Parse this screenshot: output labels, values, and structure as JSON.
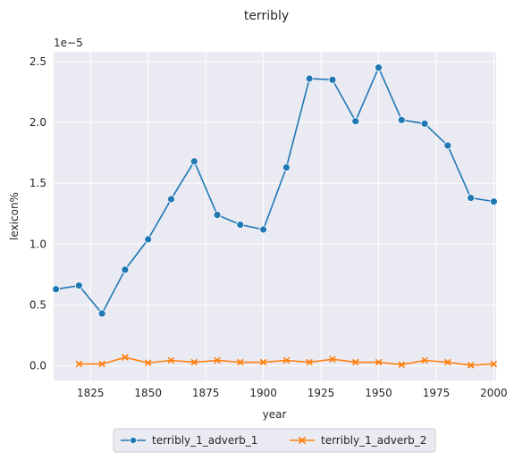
{
  "chart_data": {
    "type": "line",
    "title": "terribly",
    "xlabel": "year",
    "ylabel": "lexicon%",
    "y_multiplier": "1e−5",
    "xlim": [
      1809,
      2001
    ],
    "ylim": [
      -0.12,
      2.58
    ],
    "x_ticks": [
      1825,
      1850,
      1875,
      1900,
      1925,
      1950,
      1975,
      2000
    ],
    "y_ticks": [
      0.0,
      0.5,
      1.0,
      1.5,
      2.0,
      2.5
    ],
    "y_tick_labels": [
      "0.0",
      "0.5",
      "1.0",
      "1.5",
      "2.0",
      "2.5"
    ],
    "grid": true,
    "legend_position": "bottom-center",
    "series": [
      {
        "name": "terribly_1_adverb_1",
        "color": "#1f77b4",
        "marker": "circle",
        "x": [
          1810,
          1820,
          1830,
          1840,
          1850,
          1860,
          1870,
          1880,
          1890,
          1900,
          1910,
          1920,
          1930,
          1940,
          1950,
          1960,
          1970,
          1980,
          1990,
          2000
        ],
        "y": [
          0.63,
          0.66,
          0.43,
          0.79,
          1.04,
          1.37,
          1.68,
          1.24,
          1.16,
          1.12,
          1.63,
          2.36,
          2.35,
          2.01,
          2.45,
          2.02,
          1.99,
          1.81,
          1.38,
          1.35
        ]
      },
      {
        "name": "terribly_1_adverb_2",
        "color": "#ff7f0e",
        "marker": "x",
        "x": [
          1820,
          1830,
          1840,
          1850,
          1860,
          1870,
          1880,
          1890,
          1900,
          1910,
          1920,
          1930,
          1940,
          1950,
          1960,
          1970,
          1980,
          1990,
          2000
        ],
        "y": [
          0.015,
          0.015,
          0.07,
          0.025,
          0.045,
          0.03,
          0.045,
          0.03,
          0.03,
          0.045,
          0.03,
          0.055,
          0.03,
          0.03,
          0.01,
          0.045,
          0.03,
          0.005,
          0.015
        ]
      }
    ]
  }
}
